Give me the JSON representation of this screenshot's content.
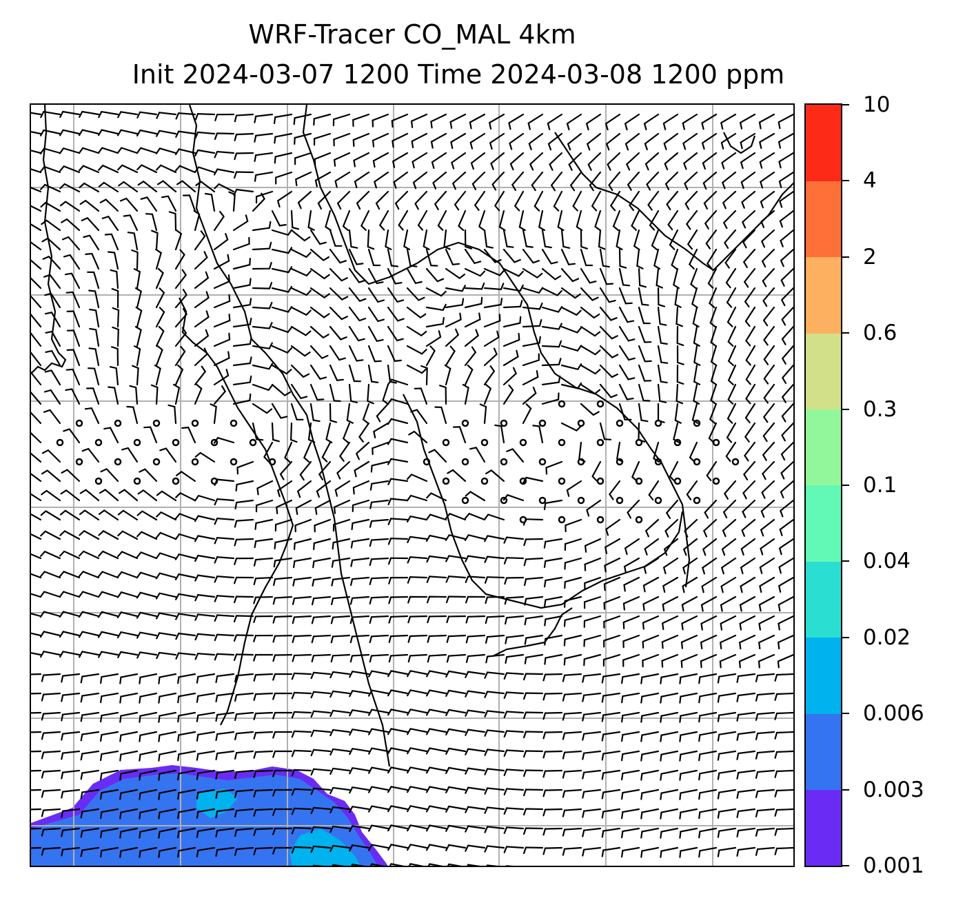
{
  "title": {
    "line1": "WRF-Tracer CO_MAL 4km",
    "line2": "Init 2024-03-07 1200 Time 2024-03-08 1200 ppm"
  },
  "colorbar": {
    "levels": [
      "0.001",
      "0.003",
      "0.006",
      "0.02",
      "0.04",
      "0.1",
      "0.3",
      "0.6",
      "2",
      "4",
      "10"
    ],
    "colors": [
      "#6a2cf5",
      "#3574f0",
      "#00b2ee",
      "#2adfd2",
      "#62f8b5",
      "#92f79a",
      "#d3e08a",
      "#fdb060",
      "#ff7038",
      "#fe2a18"
    ]
  },
  "map": {
    "gridline_color": "#b0b0b0",
    "vector_color": "#000000",
    "plume_colors": [
      "#6a2cf5",
      "#3574f0",
      "#00b2ee"
    ]
  }
}
